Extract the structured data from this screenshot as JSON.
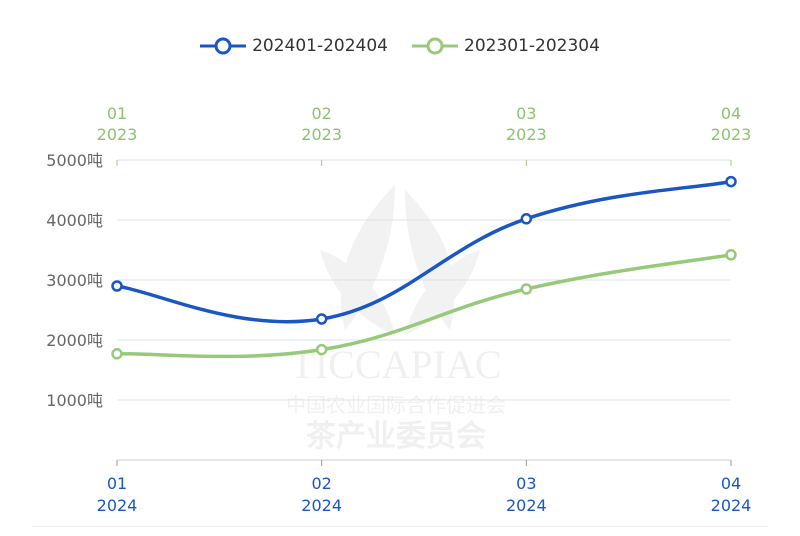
{
  "chart_data": {
    "type": "line",
    "categories": [
      "01",
      "02",
      "03",
      "04"
    ],
    "x_bottom_labels": [
      {
        "month": "01",
        "year": "2024"
      },
      {
        "month": "02",
        "year": "2024"
      },
      {
        "month": "03",
        "year": "2024"
      },
      {
        "month": "04",
        "year": "2024"
      }
    ],
    "x_top_labels": [
      {
        "month": "01",
        "year": "2023"
      },
      {
        "month": "02",
        "year": "2023"
      },
      {
        "month": "03",
        "year": "2023"
      },
      {
        "month": "04",
        "year": "2023"
      }
    ],
    "y_ticks": [
      "1000吨",
      "2000吨",
      "3000吨",
      "4000吨",
      "5000吨"
    ],
    "ylim": [
      0,
      5000
    ],
    "grid": true,
    "legend_placement": "top-center",
    "series": [
      {
        "name": "202401-202404",
        "values": [
          2900,
          2350,
          4020,
          4640
        ],
        "color": "#1a56c4"
      },
      {
        "name": "202301-202304",
        "values": [
          1770,
          1840,
          2850,
          3420
        ],
        "color": "#97c97a"
      }
    ],
    "watermark": {
      "en": "TICCAPIAC",
      "line1": "中国农业国际合作促进会",
      "line2": "茶产业委员会"
    }
  }
}
